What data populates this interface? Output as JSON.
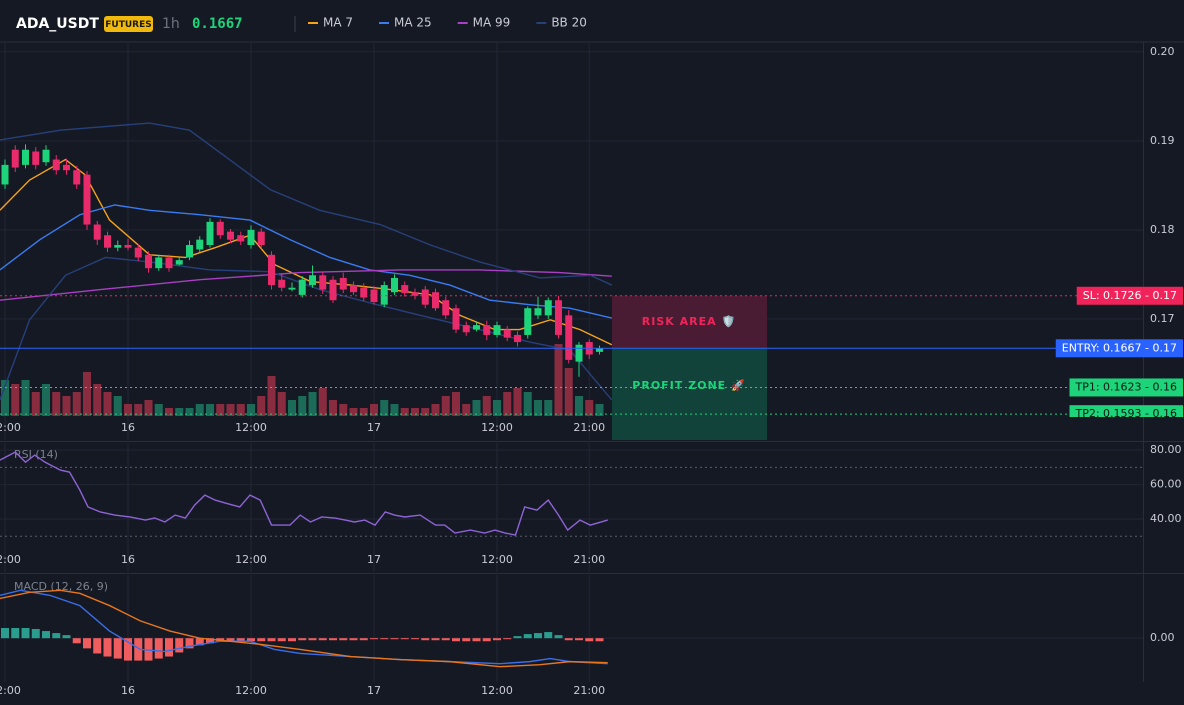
{
  "header": {
    "symbol": "ADA_USDT",
    "badge": "FUTURES",
    "interval": "1h",
    "price": "0.1667"
  },
  "chart_data": [
    {
      "type": "candlestick",
      "categories": [
        "12:00",
        null,
        null,
        null,
        null,
        null,
        null,
        null,
        null,
        null,
        null,
        null,
        "16",
        null,
        null,
        null,
        null,
        null,
        null,
        null,
        null,
        null,
        null,
        null,
        "12:00",
        null,
        null,
        null,
        null,
        null,
        null,
        null,
        null,
        null,
        null,
        null,
        "17",
        null,
        null,
        null,
        null,
        null,
        null,
        null,
        null,
        null,
        null,
        null,
        "12:00",
        null,
        null,
        null,
        null,
        null,
        null,
        null,
        null,
        "21:00",
        null
      ],
      "open": [
        0.1851,
        0.189,
        0.1873,
        0.1888,
        0.1876,
        0.1879,
        0.1873,
        0.1867,
        0.1862,
        0.1806,
        0.1794,
        0.178,
        0.1783,
        0.178,
        0.1772,
        0.1757,
        0.1769,
        0.1761,
        0.1769,
        0.1778,
        0.1783,
        0.1809,
        0.1798,
        0.1794,
        0.1783,
        0.1798,
        0.1772,
        0.1744,
        0.1733,
        0.1727,
        0.1738,
        0.1749,
        0.1744,
        0.1746,
        0.1738,
        0.1735,
        0.1733,
        0.1716,
        0.173,
        0.1738,
        0.173,
        0.1733,
        0.173,
        0.1721,
        0.1712,
        0.1693,
        0.1688,
        0.1693,
        0.1682,
        0.1688,
        0.1682,
        0.1682,
        0.1704,
        0.1704,
        0.1721,
        0.1704,
        0.1652,
        0.1674,
        0.1663
      ],
      "high": [
        0.1879,
        0.1895,
        0.1896,
        0.1893,
        0.1895,
        0.1884,
        0.188,
        0.1872,
        0.1866,
        0.181,
        0.1798,
        0.1788,
        0.179,
        0.1784,
        0.1776,
        0.1772,
        0.1772,
        0.177,
        0.1788,
        0.1793,
        0.1813,
        0.1812,
        0.1801,
        0.1798,
        0.1805,
        0.1802,
        0.1776,
        0.175,
        0.1741,
        0.1748,
        0.176,
        0.1753,
        0.1748,
        0.1752,
        0.1742,
        0.174,
        0.1737,
        0.1742,
        0.175,
        0.1742,
        0.1734,
        0.1737,
        0.1734,
        0.1725,
        0.1716,
        0.1697,
        0.1696,
        0.1698,
        0.1697,
        0.1692,
        0.1686,
        0.1714,
        0.1725,
        0.1724,
        0.1726,
        0.171,
        0.1674,
        0.1677,
        0.167
      ],
      "low": [
        0.1846,
        0.1865,
        0.1869,
        0.1868,
        0.1872,
        0.1862,
        0.1862,
        0.1846,
        0.18,
        0.1783,
        0.1775,
        0.1776,
        0.1777,
        0.1765,
        0.1752,
        0.1754,
        0.1753,
        0.176,
        0.1766,
        0.1775,
        0.178,
        0.179,
        0.1785,
        0.1783,
        0.1779,
        0.1779,
        0.1733,
        0.1731,
        0.1731,
        0.1724,
        0.1735,
        0.1728,
        0.1718,
        0.1729,
        0.1727,
        0.172,
        0.1716,
        0.1713,
        0.1727,
        0.1725,
        0.1722,
        0.1712,
        0.1709,
        0.17,
        0.1684,
        0.1681,
        0.1686,
        0.1676,
        0.1679,
        0.1675,
        0.1669,
        0.1678,
        0.17,
        0.17,
        0.1678,
        0.165,
        0.1635,
        0.1655,
        0.166
      ],
      "close": [
        0.1873,
        0.187,
        0.189,
        0.1873,
        0.189,
        0.1867,
        0.1867,
        0.1851,
        0.1806,
        0.1789,
        0.178,
        0.1783,
        0.178,
        0.1769,
        0.1757,
        0.1769,
        0.1757,
        0.1766,
        0.1783,
        0.1789,
        0.1809,
        0.1794,
        0.1789,
        0.1787,
        0.18,
        0.1783,
        0.1738,
        0.1735,
        0.1735,
        0.1744,
        0.1749,
        0.1733,
        0.1721,
        0.1733,
        0.173,
        0.1724,
        0.1719,
        0.1738,
        0.1746,
        0.1729,
        0.1726,
        0.1716,
        0.1712,
        0.1704,
        0.1688,
        0.1685,
        0.1693,
        0.1682,
        0.1693,
        0.1679,
        0.1674,
        0.1712,
        0.1712,
        0.1721,
        0.1682,
        0.1654,
        0.1671,
        0.166,
        0.1667
      ],
      "volume": [
        45,
        40,
        45,
        30,
        40,
        30,
        25,
        30,
        55,
        40,
        30,
        25,
        15,
        15,
        20,
        15,
        10,
        10,
        10,
        15,
        15,
        15,
        15,
        15,
        15,
        25,
        50,
        30,
        20,
        25,
        30,
        35,
        20,
        15,
        10,
        10,
        15,
        20,
        15,
        10,
        10,
        10,
        15,
        25,
        30,
        15,
        20,
        25,
        20,
        30,
        35,
        30,
        20,
        20,
        90,
        60,
        25,
        20,
        15
      ],
      "volume_lim": [
        0,
        100
      ],
      "up_color": "#1ed47a",
      "down_color": "#ea2b6b",
      "volume_up_color": "#1c6b58",
      "volume_down_color": "#8a2c40",
      "ylim": [
        0.1564,
        0.2011
      ],
      "yticks": [
        {
          "value": 0.2,
          "label": "0.20"
        },
        {
          "value": 0.19,
          "label": "0.19"
        },
        {
          "value": 0.18,
          "label": "0.18"
        },
        {
          "value": 0.17,
          "label": "0.17"
        }
      ],
      "grid": true,
      "series": [
        {
          "name": "MA 7",
          "color": "#f7a21b",
          "x": [
            -0.5,
            2.4,
            5.9,
            7.8,
            10.2,
            14.1,
            17.6,
            20.5,
            23.9,
            26.3,
            29.8,
            33.7,
            37.6,
            41.5,
            44.4,
            47.8,
            50.2,
            53.2,
            56.1,
            59.2
          ],
          "values": [
            0.1822,
            0.1856,
            0.1879,
            0.1862,
            0.1811,
            0.1772,
            0.1769,
            0.178,
            0.1794,
            0.1761,
            0.1742,
            0.1738,
            0.1733,
            0.1727,
            0.1704,
            0.1688,
            0.1688,
            0.1699,
            0.1688,
            0.1671
          ]
        },
        {
          "name": "MA 25",
          "color": "#3a7bf0",
          "x": [
            -0.5,
            3.4,
            7.3,
            10.7,
            14.1,
            19.0,
            23.9,
            27.8,
            31.7,
            35.6,
            39.5,
            43.4,
            47.3,
            51.2,
            55.1,
            59.2
          ],
          "values": [
            0.1755,
            0.1789,
            0.1817,
            0.1828,
            0.1822,
            0.1817,
            0.1811,
            0.1789,
            0.1769,
            0.1755,
            0.1749,
            0.1738,
            0.1721,
            0.1716,
            0.1712,
            0.1701
          ]
        },
        {
          "name": "MA 99",
          "color": "#a93fc4",
          "x": [
            -0.5,
            9.3,
            19.0,
            28.8,
            38.5,
            46.3,
            54.1,
            59.2
          ],
          "values": [
            0.1721,
            0.1733,
            0.1744,
            0.1752,
            0.1755,
            0.1755,
            0.1752,
            0.1748
          ]
        },
        {
          "name": "BB 20",
          "color": "#27407a",
          "x": [
            -0.5,
            5.4,
            14.1,
            18.0,
            21.9,
            25.9,
            30.7,
            36.6,
            41.5,
            46.3,
            52.2,
            57.1,
            59.2
          ],
          "values": [
            0.1901,
            0.1912,
            0.192,
            0.1912,
            0.1879,
            0.1845,
            0.1822,
            0.1806,
            0.1783,
            0.1764,
            0.1746,
            0.1749,
            0.1738
          ]
        },
        {
          "color": "#27407a",
          "x": [
            -0.5,
            2.4,
            5.9,
            9.8,
            14.1,
            20.0,
            25.9,
            30.7,
            35.6,
            40.5,
            46.3,
            51.2,
            55.1,
            59.2
          ],
          "values": [
            0.1609,
            0.1699,
            0.1749,
            0.1769,
            0.1764,
            0.1755,
            0.1753,
            0.1733,
            0.1718,
            0.1704,
            0.1688,
            0.1674,
            0.1665,
            0.1609
          ]
        }
      ],
      "levels": [
        {
          "label": "SL: 0.1726 - 0.17",
          "value": 0.1726,
          "color": "#f0245a",
          "text_color": "#ffffff",
          "dotted": true
        },
        {
          "label": "ENTRY: 0.1667 - 0.17",
          "value": 0.1667,
          "color": "#2962ff",
          "text_color": "#ffffff",
          "dotted": false
        },
        {
          "label": "TP1: 0.1623 - 0.16",
          "value": 0.1623,
          "color": "#1ed47a",
          "text_color": "#0b1a12",
          "dotted": true
        },
        {
          "label": "TP2: 0.1593 - 0.16",
          "value": 0.1593,
          "color": "#1ed47a",
          "text_color": "#0b1a12",
          "dotted": true
        }
      ],
      "zones": [
        {
          "label": "RISK AREA 🛡️",
          "top": 0.1726,
          "bottom": 0.1667,
          "fill": "#4a1c33",
          "text_color": "#f0245a"
        },
        {
          "label": "PROFIT ZONE 🚀",
          "top": 0.1667,
          "fill": "#11433a",
          "text_color": "#1ed47a"
        }
      ]
    },
    {
      "type": "line",
      "title": "RSI (14)",
      "categories": [
        "12:00",
        null,
        null,
        null,
        null,
        null,
        null,
        null,
        null,
        null,
        null,
        null,
        "16",
        null,
        null,
        null,
        null,
        null,
        null,
        null,
        null,
        null,
        null,
        null,
        "12:00",
        null,
        null,
        null,
        null,
        null,
        null,
        null,
        null,
        null,
        null,
        null,
        "17",
        null,
        null,
        null,
        null,
        null,
        null,
        null,
        null,
        null,
        null,
        null,
        "12:00",
        null,
        null,
        null,
        null,
        null,
        null,
        null,
        null,
        "21:00",
        null
      ],
      "ylim": [
        9.3,
        84.1
      ],
      "yticks": [
        {
          "value": 80,
          "label": "80.00"
        },
        {
          "value": 60,
          "label": "60.00"
        },
        {
          "value": 40,
          "label": "40.00"
        }
      ],
      "levels": [
        70,
        30
      ],
      "series": [
        {
          "color": "#8e63d6",
          "x": [
            -0.5,
            1.0,
            2.0,
            2.9,
            3.9,
            5.4,
            6.3,
            7.3,
            8.1,
            9.3,
            10.7,
            12.2,
            13.7,
            14.6,
            15.6,
            16.6,
            17.6,
            18.5,
            19.5,
            20.5,
            21.5,
            22.9,
            23.9,
            24.9,
            26.0,
            27.8,
            28.8,
            29.8,
            30.9,
            32.2,
            33.2,
            34.1,
            35.1,
            36.1,
            37.1,
            38.0,
            39.0,
            40.5,
            42.0,
            42.9,
            43.9,
            45.4,
            46.8,
            47.8,
            48.8,
            49.8,
            50.7,
            51.9,
            53.0,
            54.0,
            54.9,
            56.1,
            57.1,
            58.8
          ],
          "values": [
            74.2,
            78.8,
            73.0,
            77.1,
            73.0,
            68.4,
            67.2,
            56.8,
            47.0,
            44.1,
            42.3,
            41.2,
            39.4,
            40.6,
            38.3,
            42.3,
            40.6,
            48.1,
            53.9,
            51.0,
            49.3,
            47.0,
            53.9,
            51.0,
            36.5,
            36.5,
            42.3,
            38.3,
            41.2,
            40.6,
            39.4,
            38.3,
            39.4,
            36.5,
            44.1,
            42.3,
            41.2,
            42.3,
            36.5,
            36.5,
            31.9,
            33.6,
            31.9,
            33.6,
            31.9,
            30.7,
            47.0,
            45.2,
            51.0,
            42.3,
            33.6,
            39.4,
            36.5,
            39.4
          ]
        }
      ]
    },
    {
      "type": "bar",
      "title": "MACD (12, 26, 9)",
      "categories": [
        "12:00",
        null,
        null,
        null,
        null,
        null,
        null,
        null,
        null,
        null,
        null,
        null,
        "16",
        null,
        null,
        null,
        null,
        null,
        null,
        null,
        null,
        null,
        null,
        null,
        "12:00",
        null,
        null,
        null,
        null,
        null,
        null,
        null,
        null,
        null,
        null,
        null,
        "17",
        null,
        null,
        null,
        null,
        null,
        null,
        null,
        null,
        null,
        null,
        null,
        "12:00",
        null,
        null,
        null,
        null,
        null,
        null,
        null,
        null,
        "21:00",
        null
      ],
      "ylim": [
        -0.00043,
        0.00062
      ],
      "yticks": [
        {
          "value": 0,
          "label": "0.00"
        }
      ],
      "values": [
        0.0001,
        0.0001,
        0.0001,
        9e-05,
        7e-05,
        5e-05,
        3e-05,
        -5e-05,
        -0.0001,
        -0.00015,
        -0.00018,
        -0.0002,
        -0.00022,
        -0.00022,
        -0.00022,
        -0.0002,
        -0.00018,
        -0.00014,
        -0.0001,
        -7e-05,
        -5e-05,
        -3e-05,
        -3e-05,
        -3e-05,
        -3e-05,
        -3e-05,
        -3e-05,
        -3e-05,
        -3e-05,
        -2e-05,
        -2e-05,
        -2e-05,
        -2e-05,
        -2e-05,
        -2e-05,
        -2e-05,
        -1e-05,
        -1e-05,
        -1e-05,
        -1e-05,
        -1e-05,
        -2e-05,
        -2e-05,
        -2e-05,
        -3e-05,
        -3e-05,
        -3e-05,
        -3e-05,
        -2e-05,
        -1e-05,
        2e-05,
        4e-05,
        5e-05,
        6e-05,
        3e-05,
        -2e-05,
        -2e-05,
        -3e-05,
        -3e-05
      ],
      "positive_color": "#2a9d8f",
      "negative_color": "#f05d5e",
      "series": [
        {
          "color": "#3a6ee8",
          "x": [
            -0.5,
            1.5,
            4.4,
            7.3,
            10.2,
            13.2,
            15.6,
            18.0,
            21.0,
            23.9,
            26.3,
            28.8,
            33.7,
            38.5,
            43.4,
            48.3,
            51.2,
            53.2,
            55.1,
            58.8
          ],
          "values": [
            0.00042,
            0.00047,
            0.00042,
            0.00032,
            7e-05,
            -0.00011,
            -0.00013,
            -8e-05,
            -3e-05,
            -3e-05,
            -0.00011,
            -0.00015,
            -0.00018,
            -0.00021,
            -0.00023,
            -0.00025,
            -0.00023,
            -0.0002,
            -0.00023,
            -0.00025
          ]
        },
        {
          "color": "#e8761f",
          "x": [
            -0.5,
            2.4,
            5.4,
            7.3,
            10.2,
            13.2,
            16.1,
            19.0,
            21.9,
            24.9,
            28.8,
            33.7,
            38.5,
            43.4,
            48.3,
            52.2,
            55.1,
            58.8
          ],
          "values": [
            0.00039,
            0.00045,
            0.00047,
            0.00044,
            0.00032,
            0.00017,
            7e-05,
            0,
            -3e-05,
            -6e-05,
            -0.00011,
            -0.00018,
            -0.00021,
            -0.00023,
            -0.00028,
            -0.00026,
            -0.00023,
            -0.00024
          ]
        }
      ]
    }
  ]
}
